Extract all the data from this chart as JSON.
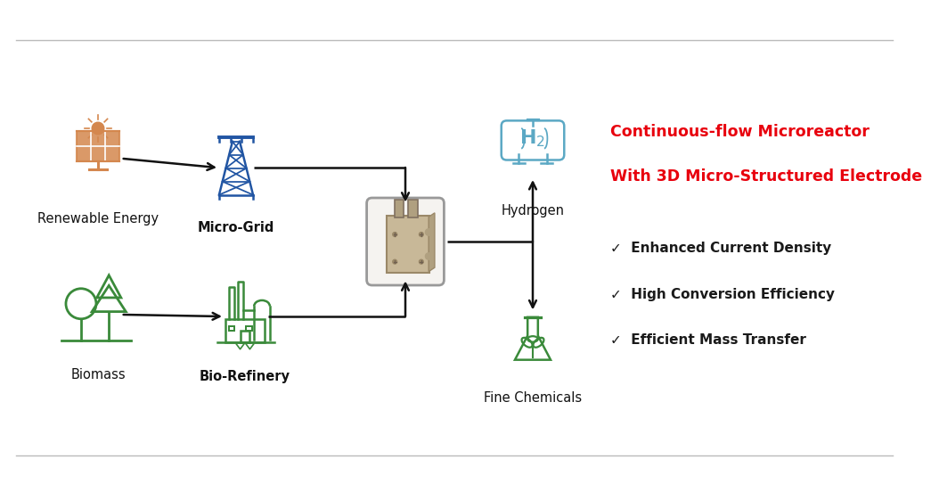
{
  "bg_color": "#ffffff",
  "title_line1": "Continuous-flow Microreactor",
  "title_line2": "With 3D Micro-Structured Electrode",
  "title_color": "#e8000d",
  "title_fontsize": 12.5,
  "bullet_color": "#1a1a1a",
  "bullet_fontsize": 11.0,
  "bullets": [
    "✓  Enhanced Current Density",
    "✓  High Conversion Efficiency",
    "✓  Efficient Mass Transfer"
  ],
  "labels": {
    "renewable": "Renewable Energy",
    "microgrid": "Micro-Grid",
    "biomass": "Biomass",
    "biorefinery": "Bio-Refinery",
    "hydrogen": "Hydrogen",
    "chemicals": "Fine Chemicals"
  },
  "label_fontsize": 10.5,
  "solar_color": "#d4874e",
  "tower_color": "#2155a3",
  "biomass_color": "#3a8a3a",
  "biorefinery_color": "#3a8a3a",
  "hydrogen_color": "#5ba8c4",
  "chemicals_color": "#3a8a3a",
  "arrow_color": "#111111"
}
